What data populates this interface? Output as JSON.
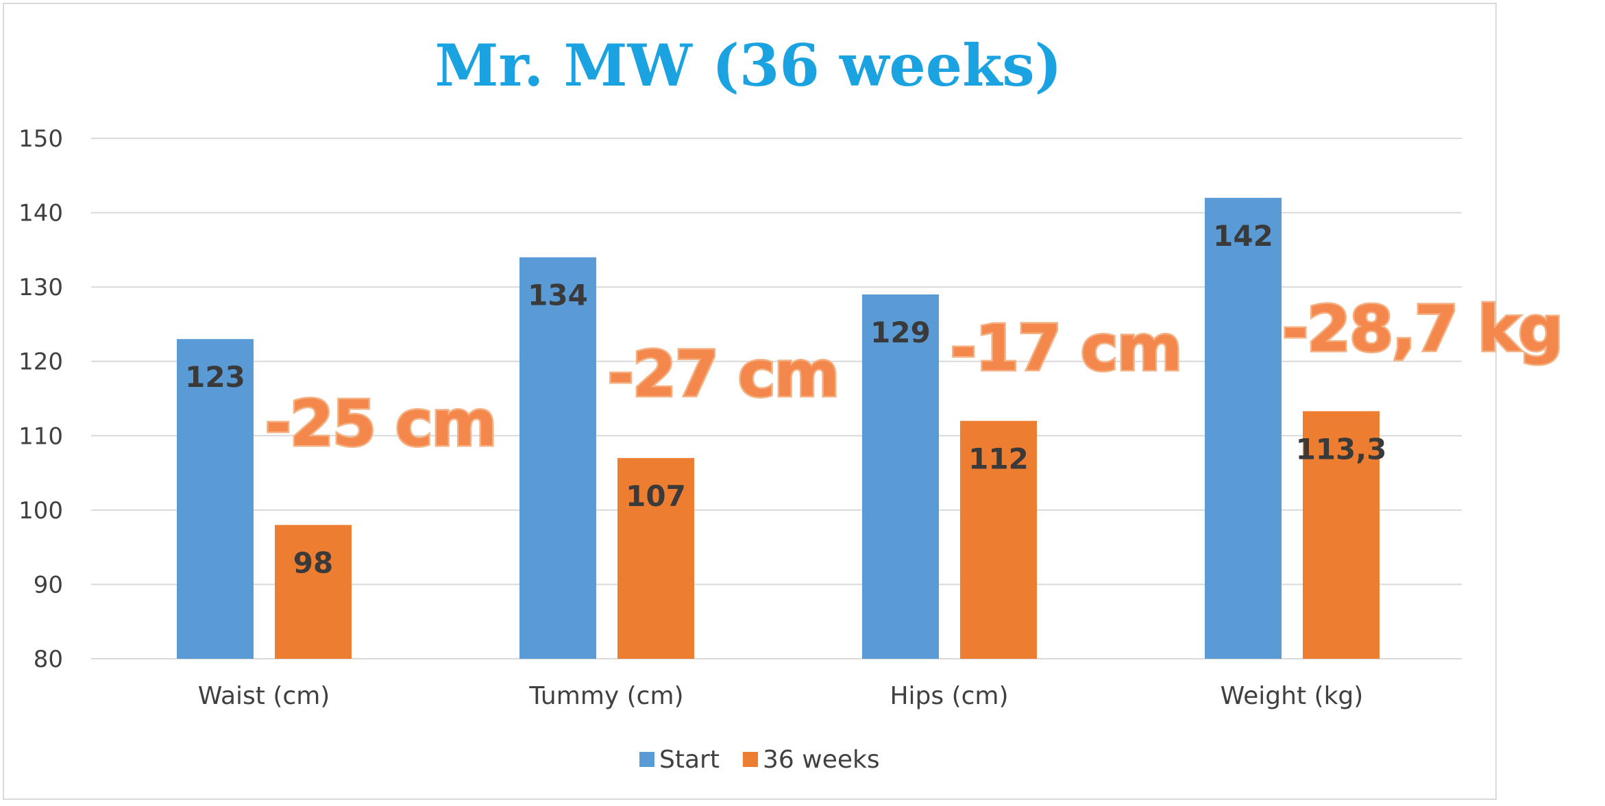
{
  "chart_data": {
    "type": "bar",
    "title": "Mr. MW (36 weeks)",
    "categories": [
      "Waist (cm)",
      "Tummy (cm)",
      "Hips (cm)",
      "Weight (kg)"
    ],
    "series": [
      {
        "name": "Start",
        "values": [
          123,
          134,
          129,
          142
        ],
        "labels": [
          "123",
          "134",
          "129",
          "142"
        ],
        "color": "#5b9bd5"
      },
      {
        "name": "36 weeks",
        "values": [
          98,
          107,
          112,
          113.3
        ],
        "labels": [
          "98",
          "107",
          "112",
          "113,3"
        ],
        "color": "#ed7d31"
      }
    ],
    "annotations": [
      "-25 cm",
      "-27 cm",
      "-17 cm",
      "-28,7 kg"
    ],
    "ylim": [
      80,
      150
    ],
    "yticks": [
      80,
      90,
      100,
      110,
      120,
      130,
      140,
      150
    ],
    "grid": true,
    "legend_position": "bottom",
    "colors": {
      "title": "#1aa3e0",
      "annotation": "#f4874b",
      "gridline": "#d9d9d9"
    }
  }
}
